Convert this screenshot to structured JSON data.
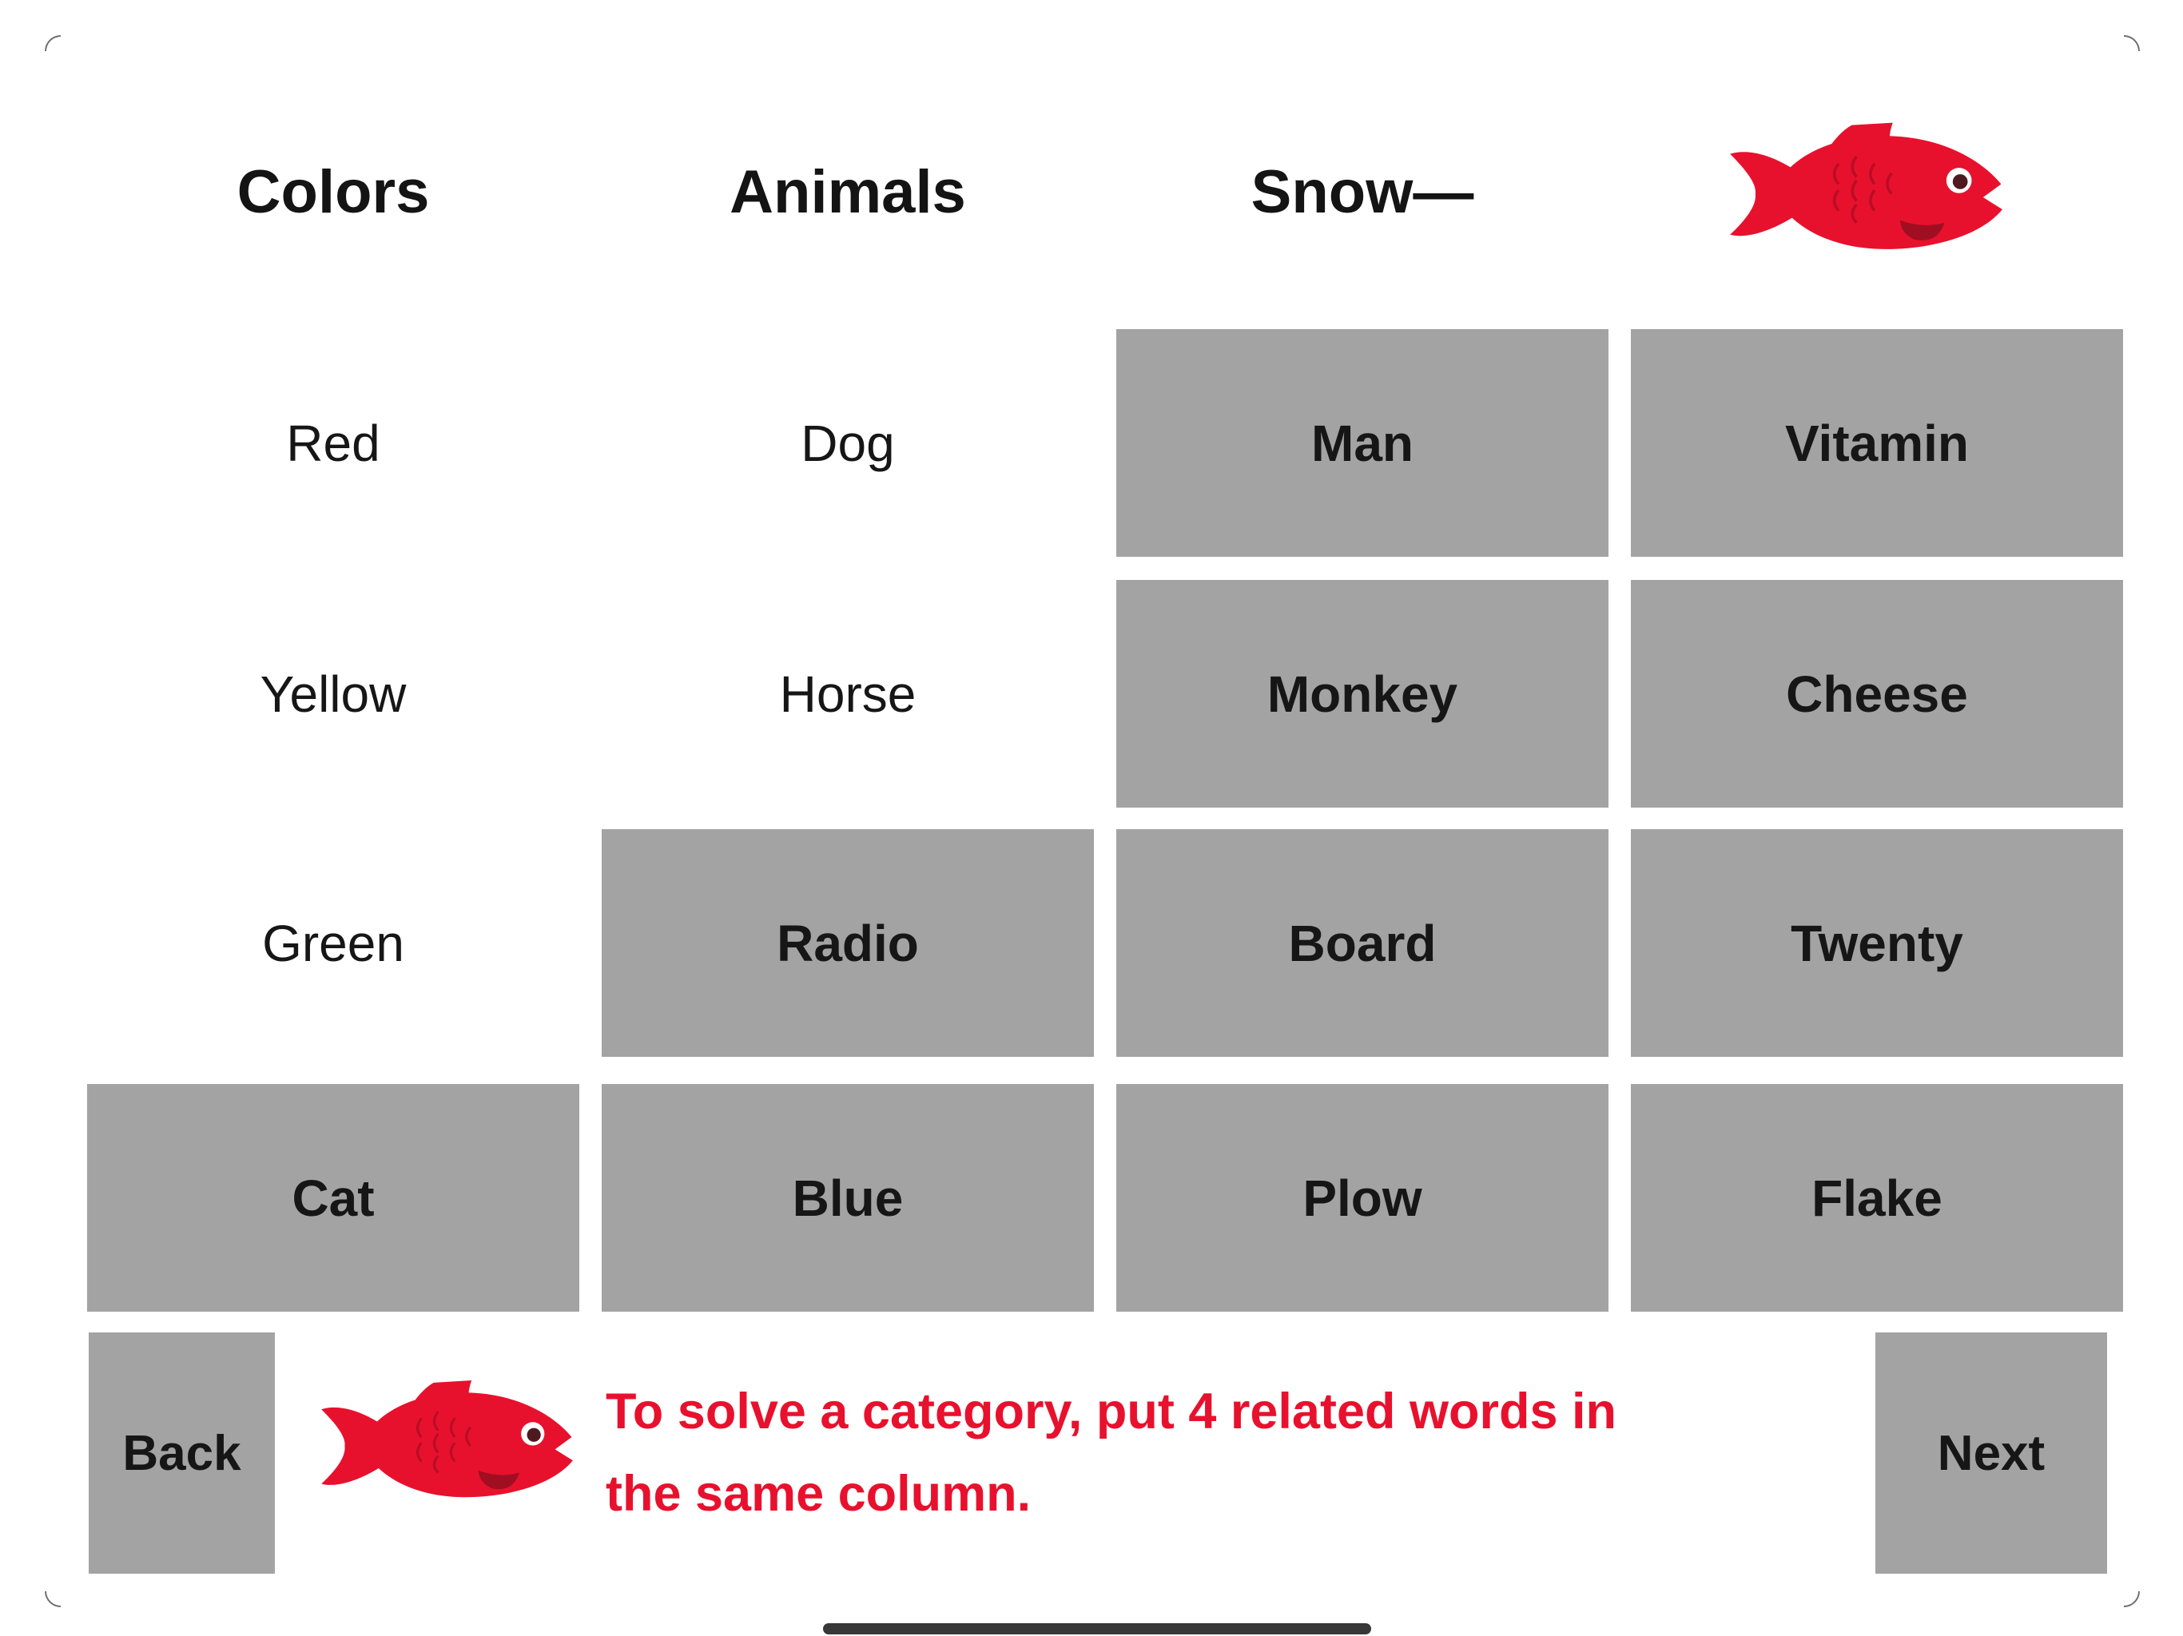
{
  "headers": [
    {
      "label": "Colors"
    },
    {
      "label": "Animals"
    },
    {
      "label": "Snow—"
    },
    {
      "label": "",
      "icon": "red-fish-icon"
    }
  ],
  "grid": {
    "cells": [
      {
        "row": 0,
        "col": 0,
        "text": "Red",
        "tile": false
      },
      {
        "row": 0,
        "col": 1,
        "text": "Dog",
        "tile": false
      },
      {
        "row": 0,
        "col": 2,
        "text": "Man",
        "tile": true
      },
      {
        "row": 0,
        "col": 3,
        "text": "Vitamin",
        "tile": true
      },
      {
        "row": 1,
        "col": 0,
        "text": "Yellow",
        "tile": false
      },
      {
        "row": 1,
        "col": 1,
        "text": "Horse",
        "tile": false
      },
      {
        "row": 1,
        "col": 2,
        "text": "Monkey",
        "tile": true
      },
      {
        "row": 1,
        "col": 3,
        "text": "Cheese",
        "tile": true
      },
      {
        "row": 2,
        "col": 0,
        "text": "Green",
        "tile": false
      },
      {
        "row": 2,
        "col": 1,
        "text": "Radio",
        "tile": true
      },
      {
        "row": 2,
        "col": 2,
        "text": "Board",
        "tile": true
      },
      {
        "row": 2,
        "col": 3,
        "text": "Twenty",
        "tile": true
      },
      {
        "row": 3,
        "col": 0,
        "text": "Cat",
        "tile": true
      },
      {
        "row": 3,
        "col": 1,
        "text": "Blue",
        "tile": true
      },
      {
        "row": 3,
        "col": 2,
        "text": "Plow",
        "tile": true
      },
      {
        "row": 3,
        "col": 3,
        "text": "Flake",
        "tile": true
      }
    ]
  },
  "footer": {
    "back_label": "Back",
    "next_label": "Next",
    "instruction_line1": "To solve a category, put 4 related words in",
    "instruction_line2": "the same column."
  },
  "icons": {
    "fish": "red-fish-icon"
  },
  "colors": {
    "tile_gray": "#a3a3a3",
    "accent_red": "#e8112d",
    "text_dark": "#161616",
    "home_indicator": "#383838"
  }
}
